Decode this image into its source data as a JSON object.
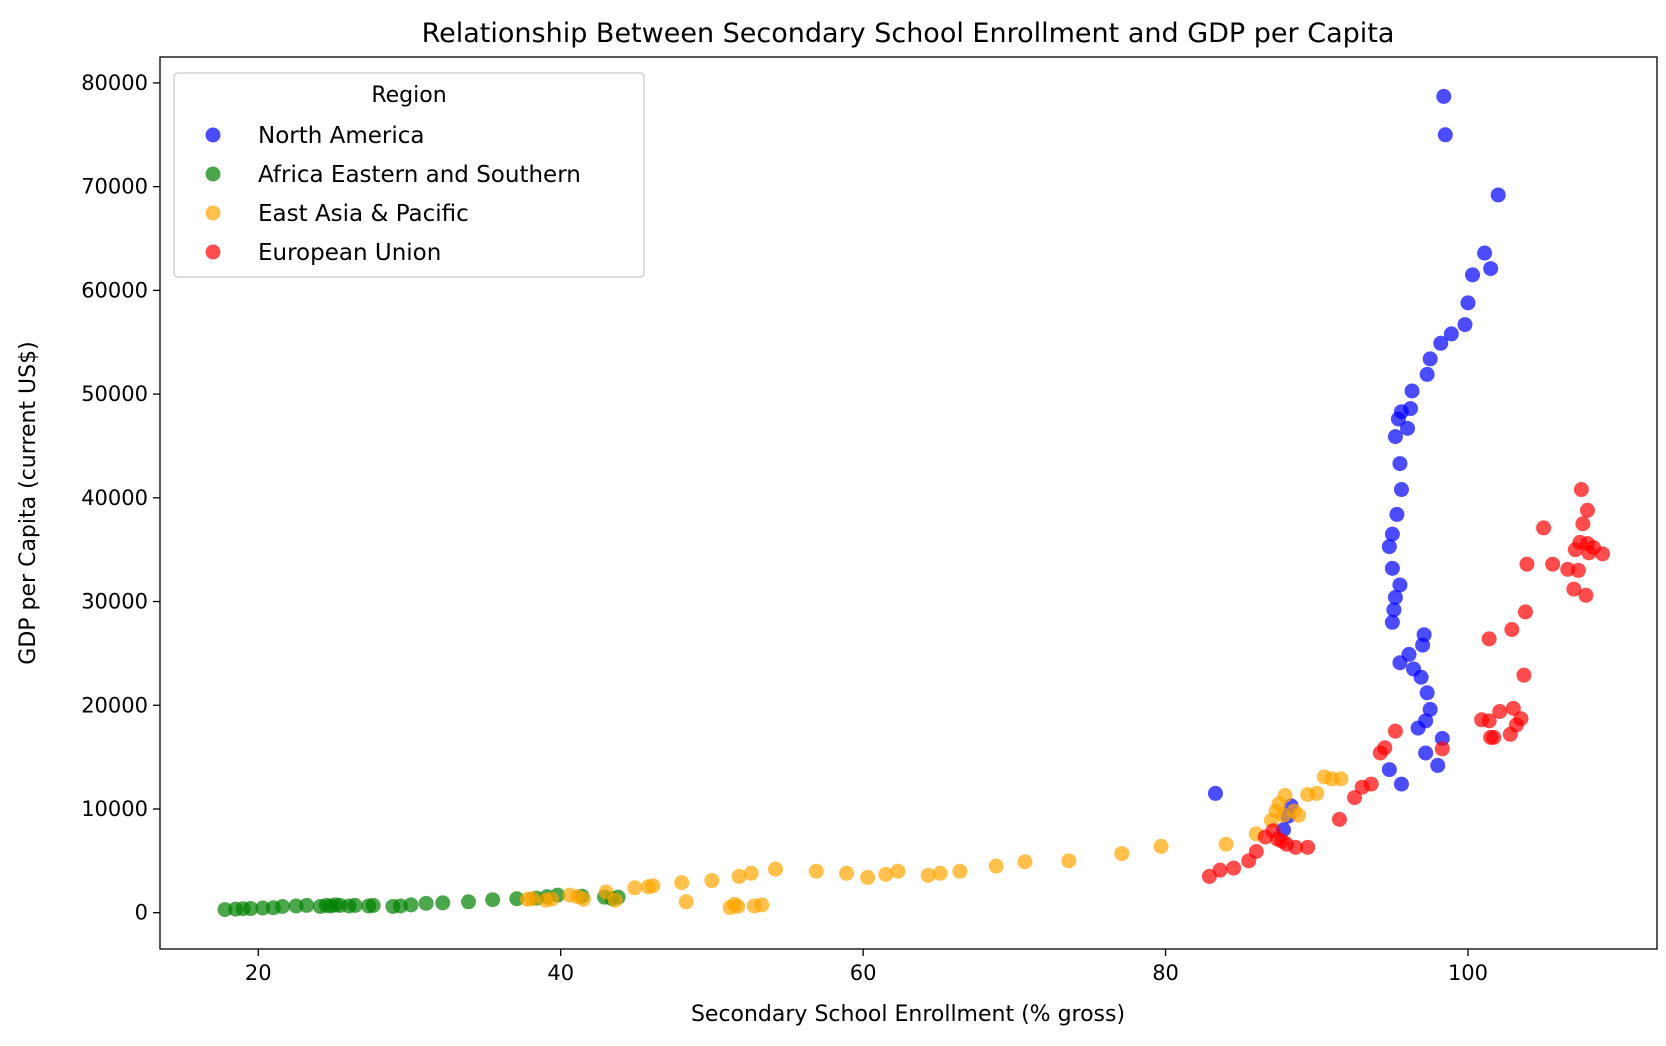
{
  "chart_data": {
    "type": "scatter",
    "title": "Relationship Between Secondary School Enrollment and GDP per Capita",
    "xlabel": "Secondary School Enrollment (% gross)",
    "ylabel": "GDP per Capita (current US$)",
    "xlim": [
      13.5,
      112.5
    ],
    "ylim": [
      -3500,
      82500
    ],
    "xticks": [
      20,
      40,
      60,
      80,
      100
    ],
    "yticks": [
      0,
      10000,
      20000,
      30000,
      40000,
      50000,
      60000,
      70000,
      80000
    ],
    "grid": false,
    "legend": {
      "title": "Region",
      "placement": "top-left"
    },
    "series": [
      {
        "name": "North America",
        "color": "#0000ff",
        "points": [
          [
            83.3,
            11500
          ],
          [
            87.8,
            8000
          ],
          [
            88.1,
            9300
          ],
          [
            88.3,
            10300
          ],
          [
            94.8,
            13800
          ],
          [
            95.6,
            12400
          ],
          [
            97.2,
            15400
          ],
          [
            98.0,
            14200
          ],
          [
            98.3,
            16800
          ],
          [
            95.5,
            24100
          ],
          [
            96.1,
            24900
          ],
          [
            96.4,
            23500
          ],
          [
            96.7,
            17800
          ],
          [
            96.9,
            22700
          ],
          [
            97.0,
            25800
          ],
          [
            97.1,
            26800
          ],
          [
            97.2,
            18500
          ],
          [
            97.3,
            21200
          ],
          [
            97.5,
            19600
          ],
          [
            95.0,
            28000
          ],
          [
            95.1,
            29200
          ],
          [
            95.2,
            30400
          ],
          [
            95.5,
            31600
          ],
          [
            95.0,
            33200
          ],
          [
            94.8,
            35300
          ],
          [
            95.0,
            36500
          ],
          [
            95.3,
            38400
          ],
          [
            95.6,
            40800
          ],
          [
            95.5,
            43300
          ],
          [
            95.2,
            45900
          ],
          [
            95.4,
            47600
          ],
          [
            95.6,
            48300
          ],
          [
            96.0,
            46700
          ],
          [
            96.2,
            48600
          ],
          [
            96.3,
            50300
          ],
          [
            97.3,
            51900
          ],
          [
            97.5,
            53400
          ],
          [
            98.2,
            54900
          ],
          [
            98.9,
            55800
          ],
          [
            99.8,
            56700
          ],
          [
            100.0,
            58800
          ],
          [
            100.3,
            61500
          ],
          [
            101.1,
            63600
          ],
          [
            101.5,
            62100
          ],
          [
            102.0,
            69200
          ],
          [
            98.5,
            75000
          ],
          [
            98.4,
            78700
          ]
        ]
      },
      {
        "name": "Africa Eastern and Southern",
        "color": "#008000",
        "points": [
          [
            17.8,
            300
          ],
          [
            18.5,
            350
          ],
          [
            19.0,
            380
          ],
          [
            19.5,
            400
          ],
          [
            20.3,
            450
          ],
          [
            21.0,
            480
          ],
          [
            21.6,
            600
          ],
          [
            22.5,
            650
          ],
          [
            23.2,
            700
          ],
          [
            24.1,
            600
          ],
          [
            24.5,
            700
          ],
          [
            24.8,
            650
          ],
          [
            25.1,
            750
          ],
          [
            25.4,
            700
          ],
          [
            26.0,
            650
          ],
          [
            26.4,
            700
          ],
          [
            27.3,
            650
          ],
          [
            27.6,
            700
          ],
          [
            28.9,
            600
          ],
          [
            29.4,
            650
          ],
          [
            30.1,
            750
          ],
          [
            31.1,
            900
          ],
          [
            32.2,
            950
          ],
          [
            33.9,
            1050
          ],
          [
            35.5,
            1250
          ],
          [
            37.1,
            1350
          ],
          [
            38.4,
            1400
          ],
          [
            39.1,
            1550
          ],
          [
            39.8,
            1700
          ],
          [
            41.4,
            1600
          ],
          [
            42.9,
            1500
          ],
          [
            43.4,
            1350
          ],
          [
            43.8,
            1500
          ]
        ]
      },
      {
        "name": "East Asia & Pacific",
        "color": "#ffa500",
        "points": [
          [
            37.8,
            1300
          ],
          [
            38.1,
            1350
          ],
          [
            39.0,
            1200
          ],
          [
            39.4,
            1300
          ],
          [
            40.6,
            1700
          ],
          [
            41.1,
            1550
          ],
          [
            41.5,
            1300
          ],
          [
            43.0,
            2000
          ],
          [
            43.6,
            1200
          ],
          [
            44.9,
            2400
          ],
          [
            45.8,
            2500
          ],
          [
            46.1,
            2600
          ],
          [
            48.0,
            2900
          ],
          [
            48.3,
            1050
          ],
          [
            50.0,
            3100
          ],
          [
            51.2,
            500
          ],
          [
            51.5,
            800
          ],
          [
            51.7,
            600
          ],
          [
            51.8,
            3500
          ],
          [
            52.6,
            3800
          ],
          [
            52.8,
            650
          ],
          [
            53.3,
            750
          ],
          [
            54.2,
            4200
          ],
          [
            56.9,
            4000
          ],
          [
            58.9,
            3800
          ],
          [
            60.3,
            3400
          ],
          [
            61.5,
            3700
          ],
          [
            62.3,
            4000
          ],
          [
            64.3,
            3600
          ],
          [
            65.1,
            3800
          ],
          [
            66.4,
            4000
          ],
          [
            68.8,
            4500
          ],
          [
            70.7,
            4900
          ],
          [
            73.6,
            5000
          ],
          [
            77.1,
            5700
          ],
          [
            79.7,
            6400
          ],
          [
            84.0,
            6600
          ],
          [
            86.0,
            7600
          ],
          [
            87.0,
            8900
          ],
          [
            87.3,
            9800
          ],
          [
            87.5,
            10500
          ],
          [
            87.9,
            11300
          ],
          [
            87.8,
            9400
          ],
          [
            88.5,
            9800
          ],
          [
            88.8,
            9400
          ],
          [
            89.4,
            11400
          ],
          [
            90.0,
            11500
          ],
          [
            90.5,
            13100
          ],
          [
            91.0,
            12900
          ],
          [
            91.6,
            12900
          ]
        ]
      },
      {
        "name": "European Union",
        "color": "#ff0000",
        "points": [
          [
            82.9,
            3500
          ],
          [
            83.6,
            4100
          ],
          [
            84.5,
            4300
          ],
          [
            85.5,
            5000
          ],
          [
            86.0,
            5900
          ],
          [
            86.6,
            7300
          ],
          [
            87.1,
            7900
          ],
          [
            87.4,
            7100
          ],
          [
            87.7,
            6900
          ],
          [
            88.0,
            6600
          ],
          [
            88.6,
            6300
          ],
          [
            89.4,
            6300
          ],
          [
            91.5,
            9000
          ],
          [
            92.5,
            11100
          ],
          [
            93.0,
            12100
          ],
          [
            93.6,
            12400
          ],
          [
            94.2,
            15400
          ],
          [
            94.5,
            15900
          ],
          [
            95.2,
            17500
          ],
          [
            98.3,
            15800
          ],
          [
            100.9,
            18600
          ],
          [
            101.4,
            18500
          ],
          [
            101.5,
            16900
          ],
          [
            101.7,
            16900
          ],
          [
            101.4,
            26400
          ],
          [
            102.1,
            19400
          ],
          [
            102.8,
            17200
          ],
          [
            103.0,
            19700
          ],
          [
            103.2,
            18100
          ],
          [
            103.5,
            18700
          ],
          [
            102.9,
            27300
          ],
          [
            103.7,
            22900
          ],
          [
            103.8,
            29000
          ],
          [
            103.9,
            33600
          ],
          [
            105.0,
            37100
          ],
          [
            105.6,
            33600
          ],
          [
            106.6,
            33100
          ],
          [
            107.0,
            31200
          ],
          [
            107.3,
            33000
          ],
          [
            107.1,
            35000
          ],
          [
            107.4,
            35700
          ],
          [
            107.6,
            37500
          ],
          [
            107.8,
            30600
          ],
          [
            107.9,
            35600
          ],
          [
            108.0,
            34700
          ],
          [
            107.5,
            40800
          ],
          [
            107.9,
            38800
          ],
          [
            108.3,
            35200
          ],
          [
            108.9,
            34600
          ]
        ]
      }
    ]
  }
}
